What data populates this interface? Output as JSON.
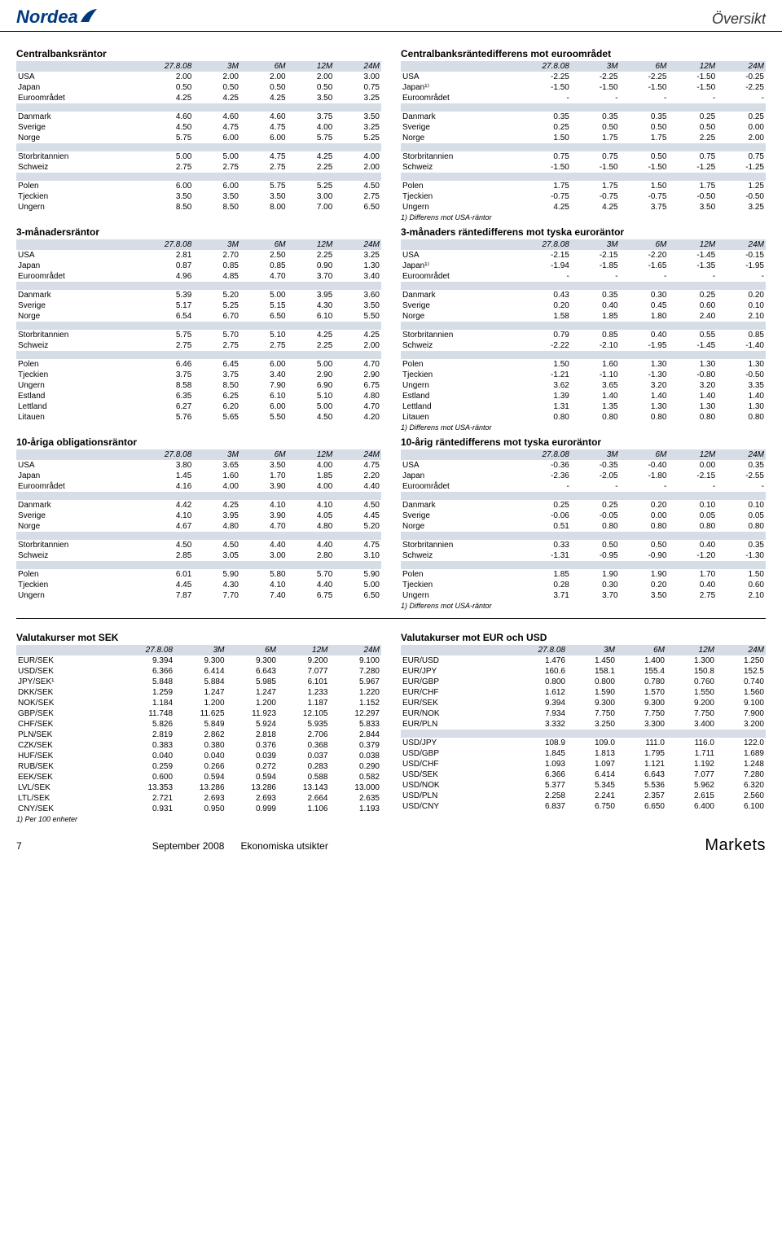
{
  "header": {
    "brand": "Nordea",
    "page_title": "Översikt"
  },
  "tables": [
    {
      "title": "Centralbanksräntor",
      "columns": [
        "",
        "27.8.08",
        "3M",
        "6M",
        "12M",
        "24M"
      ],
      "groups": [
        [
          [
            "USA",
            "2.00",
            "2.00",
            "2.00",
            "2.00",
            "3.00"
          ],
          [
            "Japan",
            "0.50",
            "0.50",
            "0.50",
            "0.50",
            "0.75"
          ],
          [
            "Euroområdet",
            "4.25",
            "4.25",
            "4.25",
            "3.50",
            "3.25"
          ]
        ],
        [
          [
            "Danmark",
            "4.60",
            "4.60",
            "4.60",
            "3.75",
            "3.50"
          ],
          [
            "Sverige",
            "4.50",
            "4.75",
            "4.75",
            "4.00",
            "3.25"
          ],
          [
            "Norge",
            "5.75",
            "6.00",
            "6.00",
            "5.75",
            "5.25"
          ]
        ],
        [
          [
            "Storbritannien",
            "5.00",
            "5.00",
            "4.75",
            "4.25",
            "4.00"
          ],
          [
            "Schweiz",
            "2.75",
            "2.75",
            "2.75",
            "2.25",
            "2.00"
          ]
        ],
        [
          [
            "Polen",
            "6.00",
            "6.00",
            "5.75",
            "5.25",
            "4.50"
          ],
          [
            "Tjeckien",
            "3.50",
            "3.50",
            "3.50",
            "3.00",
            "2.75"
          ],
          [
            "Ungern",
            "8.50",
            "8.50",
            "8.00",
            "7.00",
            "6.50"
          ]
        ]
      ]
    },
    {
      "title": "Centralbanksräntedifferens mot euroområdet",
      "columns": [
        "",
        "27.8.08",
        "3M",
        "6M",
        "12M",
        "24M"
      ],
      "groups": [
        [
          [
            "USA",
            "-2.25",
            "-2.25",
            "-2.25",
            "-1.50",
            "-0.25"
          ],
          [
            "Japan¹⁾",
            "-1.50",
            "-1.50",
            "-1.50",
            "-1.50",
            "-2.25"
          ],
          [
            "Euroområdet",
            "-",
            "-",
            "-",
            "-",
            "-"
          ]
        ],
        [
          [
            "Danmark",
            "0.35",
            "0.35",
            "0.35",
            "0.25",
            "0.25"
          ],
          [
            "Sverige",
            "0.25",
            "0.50",
            "0.50",
            "0.50",
            "0.00"
          ],
          [
            "Norge",
            "1.50",
            "1.75",
            "1.75",
            "2.25",
            "2.00"
          ]
        ],
        [
          [
            "Storbritannien",
            "0.75",
            "0.75",
            "0.50",
            "0.75",
            "0.75"
          ],
          [
            "Schweiz",
            "-1.50",
            "-1.50",
            "-1.50",
            "-1.25",
            "-1.25"
          ]
        ],
        [
          [
            "Polen",
            "1.75",
            "1.75",
            "1.50",
            "1.75",
            "1.25"
          ],
          [
            "Tjeckien",
            "-0.75",
            "-0.75",
            "-0.75",
            "-0.50",
            "-0.50"
          ],
          [
            "Ungern",
            "4.25",
            "4.25",
            "3.75",
            "3.50",
            "3.25"
          ]
        ]
      ],
      "footnote": "1) Differens mot USA-räntor"
    },
    {
      "title": "3-månadersräntor",
      "columns": [
        "",
        "27.8.08",
        "3M",
        "6M",
        "12M",
        "24M"
      ],
      "groups": [
        [
          [
            "USA",
            "2.81",
            "2.70",
            "2.50",
            "2.25",
            "3.25"
          ],
          [
            "Japan",
            "0.87",
            "0.85",
            "0.85",
            "0.90",
            "1.30"
          ],
          [
            "Euroområdet",
            "4.96",
            "4.85",
            "4.70",
            "3.70",
            "3.40"
          ]
        ],
        [
          [
            "Danmark",
            "5.39",
            "5.20",
            "5.00",
            "3.95",
            "3.60"
          ],
          [
            "Sverige",
            "5.17",
            "5.25",
            "5.15",
            "4.30",
            "3.50"
          ],
          [
            "Norge",
            "6.54",
            "6.70",
            "6.50",
            "6.10",
            "5.50"
          ]
        ],
        [
          [
            "Storbritannien",
            "5.75",
            "5.70",
            "5.10",
            "4.25",
            "4.25"
          ],
          [
            "Schweiz",
            "2.75",
            "2.75",
            "2.75",
            "2.25",
            "2.00"
          ]
        ],
        [
          [
            "Polen",
            "6.46",
            "6.45",
            "6.00",
            "5.00",
            "4.70"
          ],
          [
            "Tjeckien",
            "3.75",
            "3.75",
            "3.40",
            "2.90",
            "2.90"
          ],
          [
            "Ungern",
            "8.58",
            "8.50",
            "7.90",
            "6.90",
            "6.75"
          ],
          [
            "Estland",
            "6.35",
            "6.25",
            "6.10",
            "5.10",
            "4.80"
          ],
          [
            "Lettland",
            "6.27",
            "6.20",
            "6.00",
            "5.00",
            "4.70"
          ],
          [
            "Litauen",
            "5.76",
            "5.65",
            "5.50",
            "4.50",
            "4.20"
          ]
        ]
      ]
    },
    {
      "title": "3-månaders räntedifferens mot tyska euroräntor",
      "columns": [
        "",
        "27.8.08",
        "3M",
        "6M",
        "12M",
        "24M"
      ],
      "groups": [
        [
          [
            "USA",
            "-2.15",
            "-2.15",
            "-2.20",
            "-1.45",
            "-0.15"
          ],
          [
            "Japan¹⁾",
            "-1.94",
            "-1.85",
            "-1.65",
            "-1.35",
            "-1.95"
          ],
          [
            "Euroområdet",
            "-",
            "-",
            "-",
            "-",
            "-"
          ]
        ],
        [
          [
            "Danmark",
            "0.43",
            "0.35",
            "0.30",
            "0.25",
            "0.20"
          ],
          [
            "Sverige",
            "0.20",
            "0.40",
            "0.45",
            "0.60",
            "0.10"
          ],
          [
            "Norge",
            "1.58",
            "1.85",
            "1.80",
            "2.40",
            "2.10"
          ]
        ],
        [
          [
            "Storbritannien",
            "0.79",
            "0.85",
            "0.40",
            "0.55",
            "0.85"
          ],
          [
            "Schweiz",
            "-2.22",
            "-2.10",
            "-1.95",
            "-1.45",
            "-1.40"
          ]
        ],
        [
          [
            "Polen",
            "1.50",
            "1.60",
            "1.30",
            "1.30",
            "1.30"
          ],
          [
            "Tjeckien",
            "-1.21",
            "-1.10",
            "-1.30",
            "-0.80",
            "-0.50"
          ],
          [
            "Ungern",
            "3.62",
            "3.65",
            "3.20",
            "3.20",
            "3.35"
          ],
          [
            "Estland",
            "1.39",
            "1.40",
            "1.40",
            "1.40",
            "1.40"
          ],
          [
            "Lettland",
            "1.31",
            "1.35",
            "1.30",
            "1.30",
            "1.30"
          ],
          [
            "Litauen",
            "0.80",
            "0.80",
            "0.80",
            "0.80",
            "0.80"
          ]
        ]
      ],
      "footnote": "1) Differens mot USA-räntor"
    },
    {
      "title": "10-åriga obligationsräntor",
      "columns": [
        "",
        "27.8.08",
        "3M",
        "6M",
        "12M",
        "24M"
      ],
      "groups": [
        [
          [
            "USA",
            "3.80",
            "3.65",
            "3.50",
            "4.00",
            "4.75"
          ],
          [
            "Japan",
            "1.45",
            "1.60",
            "1.70",
            "1.85",
            "2.20"
          ],
          [
            "Euroområdet",
            "4.16",
            "4.00",
            "3.90",
            "4.00",
            "4.40"
          ]
        ],
        [
          [
            "Danmark",
            "4.42",
            "4.25",
            "4.10",
            "4.10",
            "4.50"
          ],
          [
            "Sverige",
            "4.10",
            "3.95",
            "3.90",
            "4.05",
            "4.45"
          ],
          [
            "Norge",
            "4.67",
            "4.80",
            "4.70",
            "4.80",
            "5.20"
          ]
        ],
        [
          [
            "Storbritannien",
            "4.50",
            "4.50",
            "4.40",
            "4.40",
            "4.75"
          ],
          [
            "Schweiz",
            "2.85",
            "3.05",
            "3.00",
            "2.80",
            "3.10"
          ]
        ],
        [
          [
            "Polen",
            "6.01",
            "5.90",
            "5.80",
            "5.70",
            "5.90"
          ],
          [
            "Tjeckien",
            "4.45",
            "4.30",
            "4.10",
            "4.40",
            "5.00"
          ],
          [
            "Ungern",
            "7.87",
            "7.70",
            "7.40",
            "6.75",
            "6.50"
          ]
        ]
      ]
    },
    {
      "title": "10-årig räntedifferens mot tyska euroräntor",
      "columns": [
        "",
        "27.8.08",
        "3M",
        "6M",
        "12M",
        "24M"
      ],
      "groups": [
        [
          [
            "USA",
            "-0.36",
            "-0.35",
            "-0.40",
            "0.00",
            "0.35"
          ],
          [
            "Japan",
            "-2.36",
            "-2.05",
            "-1.80",
            "-2.15",
            "-2.55"
          ],
          [
            "Euroområdet",
            "-",
            "-",
            "-",
            "-",
            "-"
          ]
        ],
        [
          [
            "Danmark",
            "0.25",
            "0.25",
            "0.20",
            "0.10",
            "0.10"
          ],
          [
            "Sverige",
            "-0.06",
            "-0.05",
            "0.00",
            "0.05",
            "0.05"
          ],
          [
            "Norge",
            "0.51",
            "0.80",
            "0.80",
            "0.80",
            "0.80"
          ]
        ],
        [
          [
            "Storbritannien",
            "0.33",
            "0.50",
            "0.50",
            "0.40",
            "0.35"
          ],
          [
            "Schweiz",
            "-1.31",
            "-0.95",
            "-0.90",
            "-1.20",
            "-1.30"
          ]
        ],
        [
          [
            "Polen",
            "1.85",
            "1.90",
            "1.90",
            "1.70",
            "1.50"
          ],
          [
            "Tjeckien",
            "0.28",
            "0.30",
            "0.20",
            "0.40",
            "0.60"
          ],
          [
            "Ungern",
            "3.71",
            "3.70",
            "3.50",
            "2.75",
            "2.10"
          ]
        ]
      ],
      "footnote": "1) Differens mot USA-räntor"
    },
    {
      "title": "Valutakurser mot SEK",
      "columns": [
        "",
        "27.8.08",
        "3M",
        "6M",
        "12M",
        "24M"
      ],
      "groups": [
        [
          [
            "EUR/SEK",
            "9.394",
            "9.300",
            "9.300",
            "9.200",
            "9.100"
          ],
          [
            "USD/SEK",
            "6.366",
            "6.414",
            "6.643",
            "7.077",
            "7.280"
          ],
          [
            "JPY/SEK¹",
            "5.848",
            "5.884",
            "5.985",
            "6.101",
            "5.967"
          ],
          [
            "DKK/SEK",
            "1.259",
            "1.247",
            "1.247",
            "1.233",
            "1.220"
          ],
          [
            "NOK/SEK",
            "1.184",
            "1.200",
            "1.200",
            "1.187",
            "1.152"
          ],
          [
            "GBP/SEK",
            "11.748",
            "11.625",
            "11.923",
            "12.105",
            "12.297"
          ],
          [
            "CHF/SEK",
            "5.826",
            "5.849",
            "5.924",
            "5.935",
            "5.833"
          ],
          [
            "PLN/SEK",
            "2.819",
            "2.862",
            "2.818",
            "2.706",
            "2.844"
          ],
          [
            "CZK/SEK",
            "0.383",
            "0.380",
            "0.376",
            "0.368",
            "0.379"
          ],
          [
            "HUF/SEK",
            "0.040",
            "0.040",
            "0.039",
            "0.037",
            "0.038"
          ],
          [
            "RUB/SEK",
            "0.259",
            "0.266",
            "0.272",
            "0.283",
            "0.290"
          ],
          [
            "EEK/SEK",
            "0.600",
            "0.594",
            "0.594",
            "0.588",
            "0.582"
          ],
          [
            "LVL/SEK",
            "13.353",
            "13.286",
            "13.286",
            "13.143",
            "13.000"
          ],
          [
            "LTL/SEK",
            "2.721",
            "2.693",
            "2.693",
            "2.664",
            "2.635"
          ],
          [
            "CNY/SEK",
            "0.931",
            "0.950",
            "0.999",
            "1.106",
            "1.193"
          ]
        ]
      ],
      "footnote": "1) Per 100 enheter"
    },
    {
      "title": "Valutakurser mot EUR och USD",
      "columns": [
        "",
        "27.8.08",
        "3M",
        "6M",
        "12M",
        "24M"
      ],
      "groups": [
        [
          [
            "EUR/USD",
            "1.476",
            "1.450",
            "1.400",
            "1.300",
            "1.250"
          ],
          [
            "EUR/JPY",
            "160.6",
            "158.1",
            "155.4",
            "150.8",
            "152.5"
          ],
          [
            "EUR/GBP",
            "0.800",
            "0.800",
            "0.780",
            "0.760",
            "0.740"
          ],
          [
            "EUR/CHF",
            "1.612",
            "1.590",
            "1.570",
            "1.550",
            "1.560"
          ],
          [
            "EUR/SEK",
            "9.394",
            "9.300",
            "9.300",
            "9.200",
            "9.100"
          ],
          [
            "EUR/NOK",
            "7.934",
            "7.750",
            "7.750",
            "7.750",
            "7.900"
          ],
          [
            "EUR/PLN",
            "3.332",
            "3.250",
            "3.300",
            "3.400",
            "3.200"
          ]
        ],
        [
          [
            "USD/JPY",
            "108.9",
            "109.0",
            "111.0",
            "116.0",
            "122.0"
          ],
          [
            "USD/GBP",
            "1.845",
            "1.813",
            "1.795",
            "1.711",
            "1.689"
          ],
          [
            "USD/CHF",
            "1.093",
            "1.097",
            "1.121",
            "1.192",
            "1.248"
          ],
          [
            "USD/SEK",
            "6.366",
            "6.414",
            "6.643",
            "7.077",
            "7.280"
          ],
          [
            "USD/NOK",
            "5.377",
            "5.345",
            "5.536",
            "5.962",
            "6.320"
          ],
          [
            "USD/PLN",
            "2.258",
            "2.241",
            "2.357",
            "2.615",
            "2.560"
          ],
          [
            "USD/CNY",
            "6.837",
            "6.750",
            "6.650",
            "6.400",
            "6.100"
          ]
        ]
      ]
    }
  ],
  "footer": {
    "page_number": "7",
    "date": "September 2008",
    "title": "Ekonomiska utsikter",
    "brand": "Markets"
  }
}
